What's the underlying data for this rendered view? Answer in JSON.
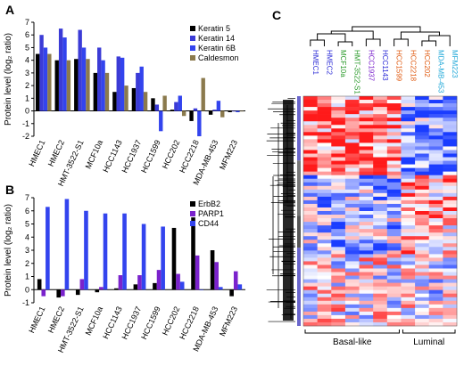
{
  "panels": {
    "A": "A",
    "B": "B",
    "C": "C"
  },
  "chart_data": [
    {
      "type": "bar",
      "panel": "A",
      "ylabel": "Protein level (log₂ ratio)",
      "ylim": [
        -2,
        7
      ],
      "yticks": [
        -2,
        -1,
        0,
        1,
        2,
        3,
        4,
        5,
        6,
        7
      ],
      "grid": false,
      "legend_position": "top-right",
      "categories": [
        "HMEC1",
        "HMEC2",
        "HMT-3522-S1",
        "MCF10a",
        "HCC1143",
        "HCC1937",
        "HCC1599",
        "HCC202",
        "HCC2218",
        "MDA-MB-453",
        "MFM223"
      ],
      "series": [
        {
          "name": "Keratin 5",
          "color": "#000000",
          "values": [
            4.5,
            4.0,
            4.1,
            3.0,
            1.5,
            1.8,
            1.0,
            0.1,
            -0.8,
            -0.3,
            -0.1
          ]
        },
        {
          "name": "Keratin 14",
          "color": "#3b3bd6",
          "values": [
            6.0,
            6.5,
            6.4,
            5.0,
            4.3,
            3.0,
            0.5,
            0.7,
            0.2,
            0.1,
            0.0
          ]
        },
        {
          "name": "Keratin 6B",
          "color": "#3344ee",
          "values": [
            5.0,
            5.8,
            5.0,
            4.0,
            4.2,
            3.5,
            -1.6,
            1.2,
            -2.0,
            0.8,
            -0.1
          ]
        },
        {
          "name": "Caldesmon",
          "color": "#8b7a4d",
          "values": [
            4.5,
            4.0,
            4.1,
            3.0,
            2.0,
            1.5,
            1.2,
            -0.4,
            2.6,
            -0.5,
            0.0
          ]
        }
      ]
    },
    {
      "type": "bar",
      "panel": "B",
      "ylabel": "Protein level (log₂ ratio)",
      "ylim": [
        -1,
        7
      ],
      "yticks": [
        -1,
        0,
        1,
        2,
        3,
        4,
        5,
        6,
        7
      ],
      "grid": false,
      "legend_position": "top-right",
      "categories": [
        "HMEC1",
        "HMEC2",
        "HMT-3522-S1",
        "MCF10a",
        "HCC1143",
        "HCC1937",
        "HCC1599",
        "HCC202",
        "HCC2218",
        "MDA-MB-453",
        "MFM223"
      ],
      "series": [
        {
          "name": "ErbB2",
          "color": "#000000",
          "values": [
            0.8,
            -0.6,
            -0.4,
            -0.2,
            0.1,
            0.4,
            0.5,
            4.7,
            5.5,
            3.0,
            -0.5
          ]
        },
        {
          "name": "PARP1",
          "color": "#7a22cc",
          "values": [
            -0.5,
            -0.5,
            0.8,
            0.2,
            1.1,
            1.1,
            1.5,
            1.2,
            2.6,
            2.1,
            1.4
          ]
        },
        {
          "name": "CD44",
          "color": "#3344ee",
          "values": [
            6.3,
            6.9,
            6.0,
            5.8,
            5.8,
            5.0,
            4.8,
            0.6,
            0.0,
            0.2,
            0.4
          ]
        }
      ]
    },
    {
      "type": "heatmap",
      "panel": "C",
      "columns": [
        {
          "label": "HMEC1",
          "color": "#2b2bd6"
        },
        {
          "label": "HMEC2",
          "color": "#2b2bd6"
        },
        {
          "label": "MCF10a",
          "color": "#2a9a2a"
        },
        {
          "label": "HMT-3522-S1",
          "color": "#2a9a2a"
        },
        {
          "label": "HCC1937",
          "color": "#7a22cc"
        },
        {
          "label": "HCC1143",
          "color": "#2b2bd6"
        },
        {
          "label": "HCC1599",
          "color": "#e05a10"
        },
        {
          "label": "HCC2218",
          "color": "#e05a10"
        },
        {
          "label": "HCC202",
          "color": "#e05a10"
        },
        {
          "label": "MDA-MB-453",
          "color": "#20a8d8"
        },
        {
          "label": "MFM223",
          "color": "#20a8d8"
        }
      ],
      "groups": [
        {
          "label": "Basal-like",
          "from": 0,
          "to": 6
        },
        {
          "label": "Luminal",
          "from": 7,
          "to": 10
        }
      ],
      "colors": {
        "low": "#1a3cff",
        "mid": "#ffffff",
        "high": "#ff1a1a"
      }
    }
  ]
}
